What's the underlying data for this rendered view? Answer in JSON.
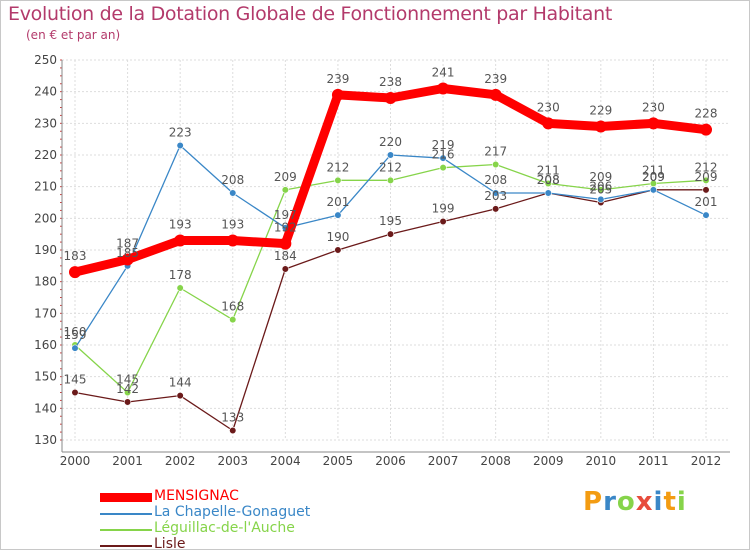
{
  "header": {
    "title": "Evolution de la Dotation Globale de Fonctionnement par Habitant",
    "subtitle": "(en € et par an)"
  },
  "chart_data": {
    "type": "line",
    "title": "Evolution de la Dotation Globale de Fonctionnement par Habitant",
    "subtitle": "(en € et par an)",
    "xlabel": "",
    "ylabel": "",
    "ylim": [
      130,
      250
    ],
    "yticks": [
      130,
      140,
      150,
      160,
      170,
      180,
      190,
      200,
      210,
      220,
      230,
      240,
      250
    ],
    "grid": true,
    "x": [
      "2000",
      "2001",
      "2002",
      "2003",
      "2004",
      "2005",
      "2006",
      "2007",
      "2008",
      "2009",
      "2010",
      "2011",
      "2012"
    ],
    "series": [
      {
        "name": "MENSIGNAC",
        "color": "#ff0000",
        "values": [
          183,
          187,
          193,
          193,
          192,
          239,
          238,
          241,
          239,
          230,
          229,
          230,
          228
        ]
      },
      {
        "name": "La Chapelle-Gonaguet",
        "color": "#3a87c7",
        "values": [
          159,
          185,
          223,
          208,
          197,
          201,
          220,
          219,
          208,
          208,
          206,
          209,
          201
        ]
      },
      {
        "name": "Léguillac-de-l'Auche",
        "color": "#86d44a",
        "values": [
          160,
          145,
          178,
          168,
          209,
          212,
          212,
          216,
          217,
          211,
          209,
          211,
          212
        ]
      },
      {
        "name": "Lisle",
        "color": "#6b1a1a",
        "values": [
          145,
          142,
          144,
          133,
          184,
          190,
          195,
          199,
          203,
          208,
          205,
          209,
          209
        ]
      }
    ]
  },
  "logo": {
    "letters": [
      "P",
      "r",
      "o",
      "x",
      "i",
      "t",
      "i"
    ],
    "colors": [
      "#f39c12",
      "#3a87c7",
      "#86d44a",
      "#e74c3c",
      "#3a87c7",
      "#f39c12",
      "#86d44a"
    ]
  }
}
